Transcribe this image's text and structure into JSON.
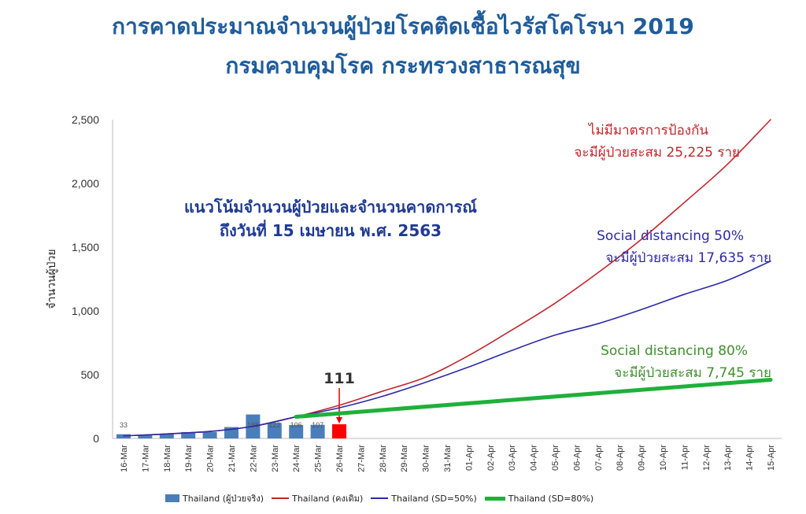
{
  "page": {
    "title_line1": "การคาดประมาณจำนวนผู้ป่วยโรคติดเชื้อไวรัสโคโรนา 2019",
    "title_line2": "กรมควบคุมโรค กระทรวงสาธารณสุข"
  },
  "chart_data": {
    "type": "bar",
    "ylabel": "จำนวนผู้ป่วย",
    "ylim": [
      0,
      2500
    ],
    "y_ticks": [
      "0",
      "500",
      "1,000",
      "1,500",
      "2,000",
      "2,500"
    ],
    "grid": false,
    "legend_position": "bottom",
    "categories": [
      "16-Mar",
      "17-Mar",
      "18-Mar",
      "19-Mar",
      "20-Mar",
      "21-Mar",
      "22-Mar",
      "23-Mar",
      "24-Mar",
      "25-Mar",
      "26-Mar",
      "27-Mar",
      "28-Mar",
      "29-Mar",
      "30-Mar",
      "31-Mar",
      "01-Apr",
      "02-Apr",
      "03-Apr",
      "04-Apr",
      "05-Apr",
      "06-Apr",
      "07-Apr",
      "08-Apr",
      "09-Apr",
      "10-Apr",
      "11-Apr",
      "12-Apr",
      "13-Apr",
      "14-Apr",
      "15-Apr"
    ],
    "bars": {
      "name": "Thailand (ผู้ป่วยจริง)",
      "color": "#4a7ebb",
      "values": [
        33,
        30,
        35,
        50,
        50,
        89,
        188,
        122,
        106,
        107,
        111
      ],
      "value_labels": [
        "33",
        "",
        "",
        "",
        "",
        "",
        "188",
        "122",
        "106",
        "107",
        ""
      ],
      "highlight_index": 10,
      "highlight_color": "#ff0000",
      "callout": "111"
    },
    "series": [
      {
        "name": "Thailand (คงเดิม)",
        "color": "#c0272d",
        "x": [
          "16-Mar",
          "18-Mar",
          "20-Mar",
          "22-Mar",
          "24-Mar",
          "26-Mar",
          "28-Mar",
          "30-Mar",
          "01-Apr",
          "03-Apr",
          "05-Apr",
          "07-Apr",
          "09-Apr",
          "11-Apr",
          "13-Apr",
          "15-Apr"
        ],
        "values": [
          20,
          35,
          55,
          95,
          170,
          260,
          370,
          480,
          650,
          850,
          1060,
          1300,
          1560,
          1850,
          2150,
          2500
        ]
      },
      {
        "name": "Thailand (SD=50%)",
        "color": "#2e2aa8",
        "x": [
          "16-Mar",
          "18-Mar",
          "20-Mar",
          "22-Mar",
          "24-Mar",
          "26-Mar",
          "28-Mar",
          "30-Mar",
          "01-Apr",
          "03-Apr",
          "05-Apr",
          "07-Apr",
          "09-Apr",
          "11-Apr",
          "13-Apr",
          "15-Apr"
        ],
        "values": [
          20,
          35,
          55,
          95,
          170,
          240,
          330,
          440,
          560,
          690,
          810,
          900,
          1010,
          1130,
          1240,
          1390
        ]
      },
      {
        "name": "Thailand (SD=80%)",
        "color": "#1fb03a",
        "x": [
          "24-Mar",
          "15-Apr"
        ],
        "values": [
          170,
          460
        ]
      }
    ],
    "annotations": {
      "trend_line1": "แนวโน้มจำนวนผู้ป่วยและจำนวนคาดการณ์",
      "trend_line2": "ถึงวันที่ 15 เมษายน พ.ศ. 2563",
      "no_measure_line1": "ไม่มีมาตรการป้องกัน",
      "no_measure_line2": "จะมีผู้ป่วยสะสม 25,225 ราย",
      "sd50_line1": "Social distancing 50%",
      "sd50_line2": "จะมีผู้ป่วยสะสม 17,635 ราย",
      "sd80_line1": "Social distancing 80%",
      "sd80_line2": "จะมีผู้ป่วยสะสม 7,745 ราย"
    }
  }
}
